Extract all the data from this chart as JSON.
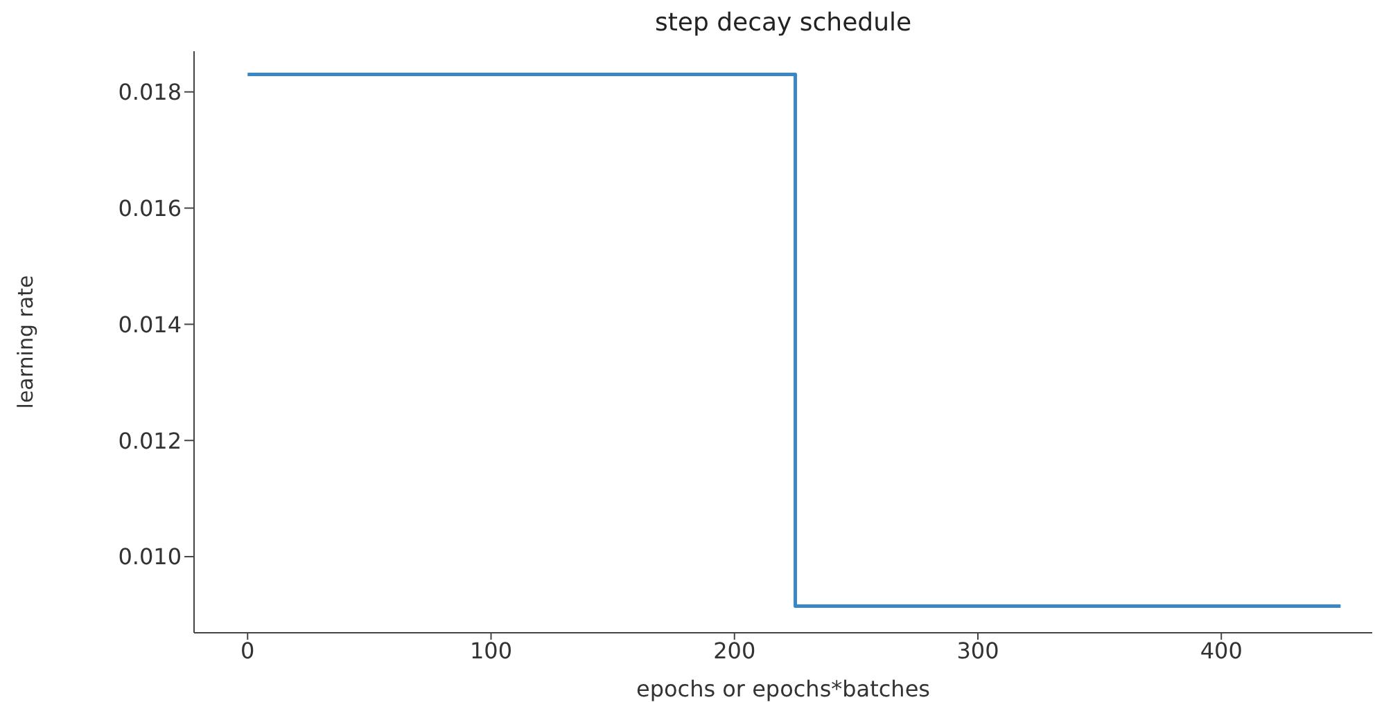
{
  "chart_data": {
    "type": "step",
    "title": "step decay schedule",
    "xlabel": "epochs or epochs*batches",
    "ylabel": "learning rate",
    "x": [
      0,
      225,
      449
    ],
    "series": [
      {
        "color": "#3a87c8",
        "values": [
          0.0183,
          0.00915,
          0.00915
        ]
      }
    ],
    "xlim": [
      -22,
      462
    ],
    "xticks": [
      0,
      100,
      200,
      300,
      400
    ],
    "ylim": [
      0.00869,
      0.0187
    ],
    "yticks": [
      {
        "value": 0.01,
        "label": "0.010"
      },
      {
        "value": 0.012,
        "label": "0.012"
      },
      {
        "value": 0.014,
        "label": "0.014"
      },
      {
        "value": 0.016,
        "label": "0.016"
      },
      {
        "value": 0.018,
        "label": "0.018"
      }
    ],
    "grid": false,
    "legend": false
  }
}
